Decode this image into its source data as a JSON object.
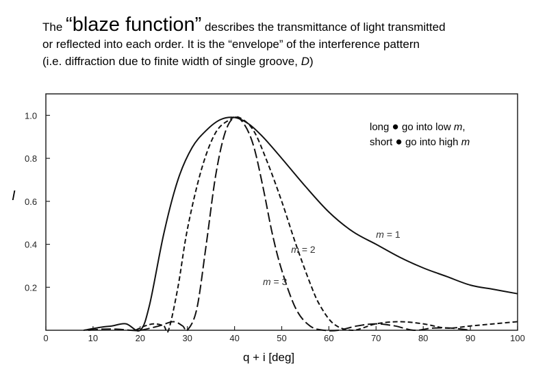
{
  "caption": {
    "lead": "The",
    "highlight": "“blaze function”",
    "rest_line1": " describes the transmittance of light transmitted",
    "line2": "or reflected into each order. It is the “envelope” of the interference pattern",
    "line3_prefix": "(i.e. diffraction due to finite width of single groove, ",
    "line3_var": "D",
    "line3_suffix": ")"
  },
  "chart_data": {
    "type": "line",
    "title": "",
    "xlabel": "q + i [deg]",
    "ylabel": "I",
    "xlim": [
      0,
      100
    ],
    "ylim": [
      0,
      1.1
    ],
    "xticks": [
      0,
      10,
      20,
      30,
      40,
      50,
      60,
      70,
      80,
      90,
      100
    ],
    "yticks": [
      0.2,
      0.4,
      0.6,
      0.8,
      1.0
    ],
    "ytick_labels": [
      "0.2",
      "0.4",
      "0.6",
      "0.8",
      "1.0"
    ],
    "grid": false,
    "annotation": {
      "line1_prefix": "long ",
      "line1_mid": " go into low ",
      "line1_var": "m",
      "line1_suffix": ",",
      "line2_prefix": "short ",
      "line2_mid": " go into high ",
      "line2_var": "m"
    },
    "series": [
      {
        "name": "m = 1",
        "style": "solid",
        "x": [
          8,
          12,
          14,
          17,
          20,
          22,
          25,
          28,
          31,
          34,
          37,
          40,
          43,
          46,
          50,
          55,
          60,
          65,
          70,
          75,
          80,
          85,
          90,
          95,
          100
        ],
        "y": [
          0.0,
          0.015,
          0.02,
          0.03,
          0.0,
          0.12,
          0.45,
          0.7,
          0.85,
          0.93,
          0.98,
          0.99,
          0.96,
          0.9,
          0.8,
          0.67,
          0.55,
          0.46,
          0.4,
          0.34,
          0.29,
          0.25,
          0.21,
          0.19,
          0.17
        ]
      },
      {
        "name": "m = 2",
        "style": "dashed",
        "x": [
          19,
          21,
          23,
          25,
          26,
          28,
          30,
          33,
          36,
          39,
          41,
          44,
          47,
          50,
          53,
          56,
          58,
          61,
          65,
          70,
          75,
          80,
          85,
          90,
          95,
          100
        ],
        "y": [
          0.0,
          0.02,
          0.03,
          0.02,
          0.0,
          0.2,
          0.47,
          0.75,
          0.92,
          0.98,
          0.99,
          0.93,
          0.78,
          0.6,
          0.4,
          0.22,
          0.12,
          0.03,
          0.0,
          0.03,
          0.04,
          0.03,
          0.01,
          0.02,
          0.03,
          0.04
        ]
      },
      {
        "name": "m = 3",
        "style": "dashed",
        "x": [
          9,
          12,
          15,
          18,
          20,
          24,
          27,
          29,
          30,
          32,
          34,
          36,
          38,
          40,
          42,
          44,
          46,
          48,
          50,
          53,
          56,
          59,
          62,
          66,
          70,
          74,
          78,
          82,
          86,
          90
        ],
        "y": [
          0.0,
          0.005,
          0.005,
          0.0,
          0.0,
          0.02,
          0.04,
          0.02,
          0.0,
          0.1,
          0.4,
          0.72,
          0.92,
          0.99,
          0.96,
          0.86,
          0.67,
          0.45,
          0.28,
          0.1,
          0.02,
          0.0,
          0.0,
          0.02,
          0.03,
          0.02,
          0.0,
          0.01,
          0.01,
          0.0
        ]
      }
    ],
    "series_labels": [
      {
        "label": "m = 1",
        "at": [
          70,
          0.43
        ]
      },
      {
        "label": "m = 2",
        "at": [
          52,
          0.36
        ]
      },
      {
        "label": "m = 3",
        "at": [
          46,
          0.21
        ]
      }
    ]
  }
}
